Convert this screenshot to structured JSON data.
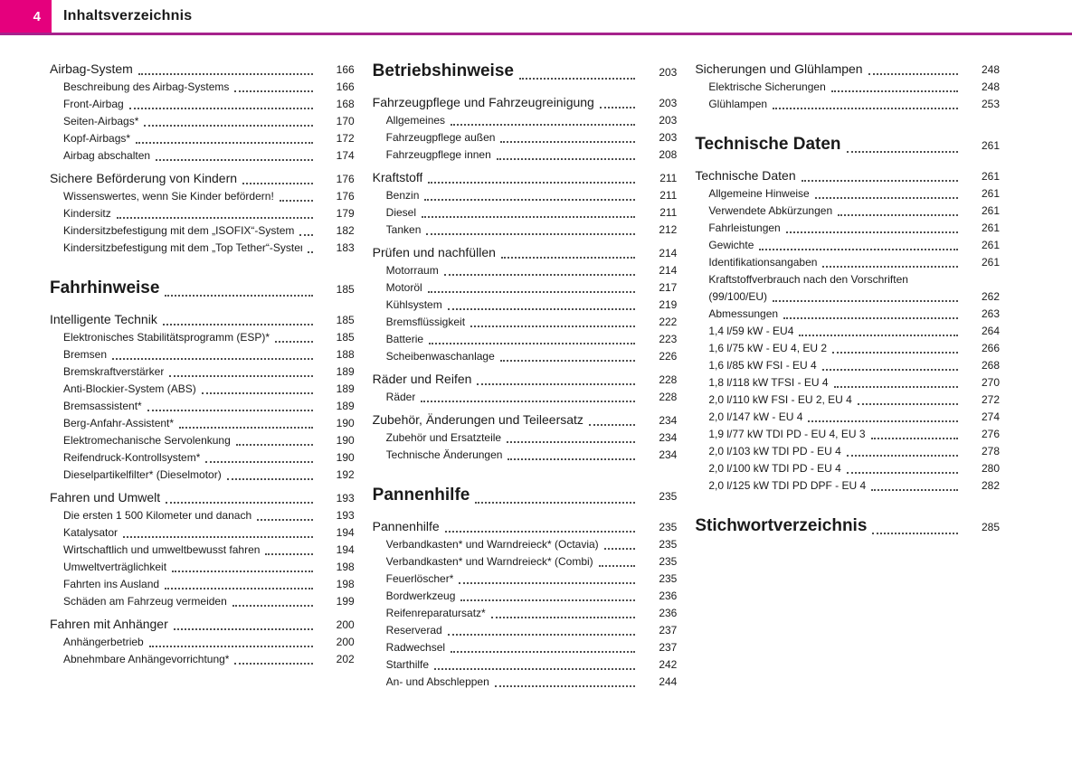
{
  "header": {
    "page_number": "4",
    "title": "Inhaltsverzeichnis"
  },
  "colors": {
    "accent": "#e5007d",
    "rule": "#a6228c",
    "leader_dots": "#4d4d4d"
  },
  "columns": [
    {
      "entries": [
        {
          "type": "section",
          "label": "Airbag-System",
          "page": "166"
        },
        {
          "type": "sub",
          "label": "Beschreibung des Airbag-Systems",
          "page": "166"
        },
        {
          "type": "sub",
          "label": "Front-Airbag",
          "page": "168"
        },
        {
          "type": "sub",
          "label": "Seiten-Airbags*",
          "page": "170"
        },
        {
          "type": "sub",
          "label": "Kopf-Airbags*",
          "page": "172"
        },
        {
          "type": "sub",
          "label": "Airbag abschalten",
          "page": "174"
        },
        {
          "type": "section",
          "label": "Sichere Beförderung von Kindern",
          "page": "176"
        },
        {
          "type": "sub",
          "label": "Wissenswertes, wenn Sie Kinder befördern!",
          "page": "176"
        },
        {
          "type": "sub",
          "label": "Kindersitz",
          "page": "179"
        },
        {
          "type": "sub",
          "label": "Kindersitzbefestigung mit dem „ISOFIX“-System",
          "page": "182"
        },
        {
          "type": "sub",
          "label": "Kindersitzbefestigung mit dem „Top Tether“-System",
          "page": "183"
        },
        {
          "type": "chapter",
          "label": "Fahrhinweise",
          "page": "185"
        },
        {
          "type": "section",
          "label": "Intelligente Technik",
          "page": "185"
        },
        {
          "type": "sub",
          "label": "Elektronisches Stabilitätsprogramm (ESP)*",
          "page": "185"
        },
        {
          "type": "sub",
          "label": "Bremsen",
          "page": "188"
        },
        {
          "type": "sub",
          "label": "Bremskraftverstärker",
          "page": "189"
        },
        {
          "type": "sub",
          "label": "Anti-Blockier-System (ABS)",
          "page": "189"
        },
        {
          "type": "sub",
          "label": "Bremsassistent*",
          "page": "189"
        },
        {
          "type": "sub",
          "label": "Berg-Anfahr-Assistent*",
          "page": "190"
        },
        {
          "type": "sub",
          "label": "Elektromechanische Servolenkung",
          "page": "190"
        },
        {
          "type": "sub",
          "label": "Reifendruck-Kontrollsystem*",
          "page": "190"
        },
        {
          "type": "sub",
          "label": "Dieselpartikelfilter* (Dieselmotor)",
          "page": "192"
        },
        {
          "type": "section",
          "label": "Fahren und Umwelt",
          "page": "193"
        },
        {
          "type": "sub",
          "label": "Die ersten 1 500 Kilometer und danach",
          "page": "193"
        },
        {
          "type": "sub",
          "label": "Katalysator",
          "page": "194"
        },
        {
          "type": "sub",
          "label": "Wirtschaftlich und umweltbewusst fahren",
          "page": "194"
        },
        {
          "type": "sub",
          "label": "Umweltverträglichkeit",
          "page": "198"
        },
        {
          "type": "sub",
          "label": "Fahrten ins Ausland",
          "page": "198"
        },
        {
          "type": "sub",
          "label": "Schäden am Fahrzeug vermeiden",
          "page": "199"
        },
        {
          "type": "section",
          "label": "Fahren mit Anhänger",
          "page": "200"
        },
        {
          "type": "sub",
          "label": "Anhängerbetrieb",
          "page": "200"
        },
        {
          "type": "sub",
          "label": "Abnehmbare Anhängevorrichtung*",
          "page": "202"
        }
      ]
    },
    {
      "entries": [
        {
          "type": "chapter",
          "label": "Betriebshinweise",
          "page": "203"
        },
        {
          "type": "section",
          "label": "Fahrzeugpflege und Fahrzeugreinigung",
          "page": "203"
        },
        {
          "type": "sub",
          "label": "Allgemeines",
          "page": "203"
        },
        {
          "type": "sub",
          "label": "Fahrzeugpflege außen",
          "page": "203"
        },
        {
          "type": "sub",
          "label": "Fahrzeugpflege innen",
          "page": "208"
        },
        {
          "type": "section",
          "label": "Kraftstoff",
          "page": "211"
        },
        {
          "type": "sub",
          "label": "Benzin",
          "page": "211"
        },
        {
          "type": "sub",
          "label": "Diesel",
          "page": "211"
        },
        {
          "type": "sub",
          "label": "Tanken",
          "page": "212"
        },
        {
          "type": "section",
          "label": "Prüfen und nachfüllen",
          "page": "214"
        },
        {
          "type": "sub",
          "label": "Motorraum",
          "page": "214"
        },
        {
          "type": "sub",
          "label": "Motoröl",
          "page": "217"
        },
        {
          "type": "sub",
          "label": "Kühlsystem",
          "page": "219"
        },
        {
          "type": "sub",
          "label": "Bremsflüssigkeit",
          "page": "222"
        },
        {
          "type": "sub",
          "label": "Batterie",
          "page": "223"
        },
        {
          "type": "sub",
          "label": "Scheibenwaschanlage",
          "page": "226"
        },
        {
          "type": "section",
          "label": "Räder und Reifen",
          "page": "228"
        },
        {
          "type": "sub",
          "label": "Räder",
          "page": "228"
        },
        {
          "type": "section",
          "label": "Zubehör, Änderungen und Teileersatz",
          "page": "234"
        },
        {
          "type": "sub",
          "label": "Zubehör und Ersatzteile",
          "page": "234"
        },
        {
          "type": "sub",
          "label": "Technische Änderungen",
          "page": "234"
        },
        {
          "type": "chapter",
          "label": "Pannenhilfe",
          "page": "235"
        },
        {
          "type": "section",
          "label": "Pannenhilfe",
          "page": "235"
        },
        {
          "type": "sub",
          "label": "Verbandkasten* und Warndreieck* (Octavia)",
          "page": "235"
        },
        {
          "type": "sub",
          "label": "Verbandkasten* und Warndreieck* (Combi)",
          "page": "235"
        },
        {
          "type": "sub",
          "label": "Feuerlöscher*",
          "page": "235"
        },
        {
          "type": "sub",
          "label": "Bordwerkzeug",
          "page": "236"
        },
        {
          "type": "sub",
          "label": "Reifenreparatursatz*",
          "page": "236"
        },
        {
          "type": "sub",
          "label": "Reserverad",
          "page": "237"
        },
        {
          "type": "sub",
          "label": "Radwechsel",
          "page": "237"
        },
        {
          "type": "sub",
          "label": "Starthilfe",
          "page": "242"
        },
        {
          "type": "sub",
          "label": "An- und Abschleppen",
          "page": "244"
        }
      ]
    },
    {
      "entries": [
        {
          "type": "section",
          "label": "Sicherungen und Glühlampen",
          "page": "248"
        },
        {
          "type": "sub",
          "label": "Elektrische Sicherungen",
          "page": "248"
        },
        {
          "type": "sub",
          "label": "Glühlampen",
          "page": "253"
        },
        {
          "type": "chapter",
          "label": "Technische Daten",
          "page": "261"
        },
        {
          "type": "section",
          "label": "Technische Daten",
          "page": "261"
        },
        {
          "type": "sub",
          "label": "Allgemeine Hinweise",
          "page": "261"
        },
        {
          "type": "sub",
          "label": "Verwendete Abkürzungen",
          "page": "261"
        },
        {
          "type": "sub",
          "label": "Fahrleistungen",
          "page": "261"
        },
        {
          "type": "sub",
          "label": "Gewichte",
          "page": "261"
        },
        {
          "type": "sub",
          "label": "Identifikationsangaben",
          "page": "261"
        },
        {
          "type": "wrap",
          "label": "Kraftstoffverbrauch nach den Vorschriften",
          "label2": "(99/100/EU)",
          "page": "262"
        },
        {
          "type": "sub",
          "label": "Abmessungen",
          "page": "263"
        },
        {
          "type": "sub",
          "label": "1,4 l/59 kW - EU4",
          "page": "264"
        },
        {
          "type": "sub",
          "label": "1,6 l/75 kW - EU 4, EU 2",
          "page": "266"
        },
        {
          "type": "sub",
          "label": "1,6 l/85 kW FSI - EU 4",
          "page": "268"
        },
        {
          "type": "sub",
          "label": "1,8 l/118 kW TFSI - EU 4",
          "page": "270"
        },
        {
          "type": "sub",
          "label": "2,0 l/110 kW FSI - EU 2, EU 4",
          "page": "272"
        },
        {
          "type": "sub",
          "label": "2,0 l/147 kW - EU 4",
          "page": "274"
        },
        {
          "type": "sub",
          "label": "1,9 l/77 kW TDI PD - EU 4, EU 3",
          "page": "276"
        },
        {
          "type": "sub",
          "label": "2,0 l/103 kW TDI PD - EU 4",
          "page": "278"
        },
        {
          "type": "sub",
          "label": "2,0 l/100 kW TDI PD - EU 4",
          "page": "280"
        },
        {
          "type": "sub",
          "label": "2,0 l/125 kW TDI PD DPF - EU 4",
          "page": "282"
        },
        {
          "type": "chapter",
          "label": "Stichwortverzeichnis",
          "page": "285"
        }
      ]
    }
  ]
}
